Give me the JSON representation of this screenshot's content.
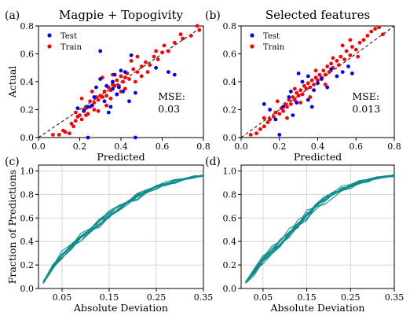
{
  "chart_data": [
    {
      "panel": "(a)",
      "type": "scatter",
      "title": "Magpie + Topogivity",
      "xlabel": "Predicted",
      "ylabel": "Actual",
      "xlim": [
        0,
        0.8
      ],
      "ylim": [
        0,
        0.8
      ],
      "xticks": [
        "0.0",
        "0.2",
        "0.4",
        "0.6",
        "0.8"
      ],
      "yticks": [
        "0.0",
        "0.2",
        "0.4",
        "0.6",
        "0.8"
      ],
      "diagonal": true,
      "legend": "top-left",
      "annotation": [
        "MSE:",
        "0.03"
      ],
      "series": [
        {
          "name": "Test",
          "color": "#0000ff",
          "points": [
            [
              0.22,
              0.19
            ],
            [
              0.24,
              0.22
            ],
            [
              0.26,
              0.23
            ],
            [
              0.28,
              0.36
            ],
            [
              0.3,
              0.42
            ],
            [
              0.32,
              0.26
            ],
            [
              0.34,
              0.18
            ],
            [
              0.35,
              0.22
            ],
            [
              0.36,
              0.4
            ],
            [
              0.37,
              0.45
            ],
            [
              0.38,
              0.31
            ],
            [
              0.4,
              0.48
            ],
            [
              0.41,
              0.33
            ],
            [
              0.44,
              0.26
            ],
            [
              0.45,
              0.59
            ],
            [
              0.47,
              0.32
            ],
            [
              0.57,
              0.5
            ],
            [
              0.63,
              0.47
            ],
            [
              0.66,
              0.45
            ],
            [
              0.3,
              0.62
            ],
            [
              0.47,
              0.0
            ],
            [
              0.24,
              0.0
            ],
            [
              0.19,
              0.21
            ],
            [
              0.36,
              0.35
            ],
            [
              0.42,
              0.47
            ],
            [
              0.27,
              0.29
            ],
            [
              0.33,
              0.37
            ],
            [
              0.39,
              0.36
            ]
          ]
        },
        {
          "name": "Train",
          "color": "#ff0000",
          "points": [
            [
              0.07,
              0.02
            ],
            [
              0.1,
              0.02
            ],
            [
              0.12,
              0.05
            ],
            [
              0.13,
              0.04
            ],
            [
              0.15,
              0.03
            ],
            [
              0.16,
              0.1
            ],
            [
              0.17,
              0.08
            ],
            [
              0.18,
              0.12
            ],
            [
              0.19,
              0.15
            ],
            [
              0.2,
              0.16
            ],
            [
              0.21,
              0.13
            ],
            [
              0.22,
              0.2
            ],
            [
              0.23,
              0.21
            ],
            [
              0.24,
              0.17
            ],
            [
              0.25,
              0.22
            ],
            [
              0.25,
              0.26
            ],
            [
              0.26,
              0.23
            ],
            [
              0.27,
              0.25
            ],
            [
              0.28,
              0.29
            ],
            [
              0.29,
              0.27
            ],
            [
              0.3,
              0.3
            ],
            [
              0.31,
              0.29
            ],
            [
              0.32,
              0.33
            ],
            [
              0.33,
              0.3
            ],
            [
              0.34,
              0.36
            ],
            [
              0.35,
              0.34
            ],
            [
              0.36,
              0.38
            ],
            [
              0.37,
              0.37
            ],
            [
              0.38,
              0.41
            ],
            [
              0.39,
              0.37
            ],
            [
              0.4,
              0.44
            ],
            [
              0.41,
              0.4
            ],
            [
              0.42,
              0.43
            ],
            [
              0.43,
              0.46
            ],
            [
              0.44,
              0.42
            ],
            [
              0.46,
              0.49
            ],
            [
              0.48,
              0.47
            ],
            [
              0.5,
              0.51
            ],
            [
              0.52,
              0.54
            ],
            [
              0.54,
              0.52
            ],
            [
              0.56,
              0.58
            ],
            [
              0.58,
              0.56
            ],
            [
              0.6,
              0.61
            ],
            [
              0.63,
              0.62
            ],
            [
              0.66,
              0.68
            ],
            [
              0.7,
              0.71
            ],
            [
              0.74,
              0.73
            ],
            [
              0.78,
              0.77
            ],
            [
              0.77,
              0.8
            ],
            [
              0.29,
              0.19
            ],
            [
              0.33,
              0.23
            ],
            [
              0.38,
              0.31
            ],
            [
              0.42,
              0.35
            ],
            [
              0.47,
              0.4
            ],
            [
              0.21,
              0.28
            ],
            [
              0.26,
              0.33
            ],
            [
              0.36,
              0.45
            ],
            [
              0.31,
              0.43
            ],
            [
              0.45,
              0.55
            ],
            [
              0.53,
              0.47
            ],
            [
              0.57,
              0.62
            ],
            [
              0.61,
              0.66
            ],
            [
              0.69,
              0.74
            ],
            [
              0.18,
              0.18
            ],
            [
              0.23,
              0.16
            ],
            [
              0.27,
              0.2
            ],
            [
              0.35,
              0.28
            ],
            [
              0.4,
              0.33
            ],
            [
              0.48,
              0.58
            ],
            [
              0.5,
              0.44
            ]
          ]
        }
      ]
    },
    {
      "panel": "(b)",
      "type": "scatter",
      "title": "Selected features",
      "xlabel": "Predicted",
      "ylabel": "",
      "xlim": [
        0,
        0.8
      ],
      "ylim": [
        0,
        0.8
      ],
      "xticks": [
        "0.0",
        "0.2",
        "0.4",
        "0.6",
        "0.8"
      ],
      "yticks": [
        "0.0",
        "0.2",
        "0.4",
        "0.6",
        "0.8"
      ],
      "diagonal": true,
      "legend": "top-left",
      "annotation": [
        "MSE:",
        "0.013"
      ],
      "series": [
        {
          "name": "Test",
          "color": "#0000ff",
          "points": [
            [
              0.12,
              0.24
            ],
            [
              0.15,
              0.2
            ],
            [
              0.18,
              0.13
            ],
            [
              0.2,
              0.02
            ],
            [
              0.22,
              0.22
            ],
            [
              0.25,
              0.29
            ],
            [
              0.27,
              0.16
            ],
            [
              0.29,
              0.25
            ],
            [
              0.3,
              0.46
            ],
            [
              0.32,
              0.4
            ],
            [
              0.35,
              0.27
            ],
            [
              0.37,
              0.22
            ],
            [
              0.38,
              0.34
            ],
            [
              0.4,
              0.39
            ],
            [
              0.42,
              0.42
            ],
            [
              0.45,
              0.36
            ],
            [
              0.47,
              0.49
            ],
            [
              0.5,
              0.44
            ],
            [
              0.53,
              0.47
            ],
            [
              0.56,
              0.51
            ],
            [
              0.58,
              0.46
            ],
            [
              0.35,
              0.44
            ],
            [
              0.26,
              0.33
            ]
          ]
        },
        {
          "name": "Train",
          "color": "#ff0000",
          "points": [
            [
              0.05,
              0.02
            ],
            [
              0.08,
              0.03
            ],
            [
              0.1,
              0.06
            ],
            [
              0.12,
              0.08
            ],
            [
              0.14,
              0.11
            ],
            [
              0.15,
              0.13
            ],
            [
              0.17,
              0.15
            ],
            [
              0.18,
              0.18
            ],
            [
              0.2,
              0.17
            ],
            [
              0.21,
              0.21
            ],
            [
              0.22,
              0.19
            ],
            [
              0.23,
              0.24
            ],
            [
              0.24,
              0.22
            ],
            [
              0.25,
              0.27
            ],
            [
              0.26,
              0.24
            ],
            [
              0.27,
              0.29
            ],
            [
              0.28,
              0.27
            ],
            [
              0.29,
              0.32
            ],
            [
              0.3,
              0.3
            ],
            [
              0.31,
              0.34
            ],
            [
              0.32,
              0.31
            ],
            [
              0.33,
              0.37
            ],
            [
              0.34,
              0.35
            ],
            [
              0.35,
              0.39
            ],
            [
              0.36,
              0.36
            ],
            [
              0.37,
              0.41
            ],
            [
              0.38,
              0.38
            ],
            [
              0.39,
              0.43
            ],
            [
              0.4,
              0.41
            ],
            [
              0.41,
              0.45
            ],
            [
              0.42,
              0.43
            ],
            [
              0.43,
              0.48
            ],
            [
              0.44,
              0.45
            ],
            [
              0.45,
              0.51
            ],
            [
              0.46,
              0.47
            ],
            [
              0.47,
              0.53
            ],
            [
              0.48,
              0.5
            ],
            [
              0.5,
              0.55
            ],
            [
              0.51,
              0.52
            ],
            [
              0.52,
              0.58
            ],
            [
              0.54,
              0.56
            ],
            [
              0.55,
              0.62
            ],
            [
              0.57,
              0.59
            ],
            [
              0.58,
              0.65
            ],
            [
              0.6,
              0.63
            ],
            [
              0.62,
              0.68
            ],
            [
              0.64,
              0.7
            ],
            [
              0.66,
              0.73
            ],
            [
              0.68,
              0.76
            ],
            [
              0.7,
              0.78
            ],
            [
              0.72,
              0.79
            ],
            [
              0.74,
              0.74
            ],
            [
              0.12,
              0.14
            ],
            [
              0.19,
              0.26
            ],
            [
              0.24,
              0.14
            ],
            [
              0.28,
              0.35
            ],
            [
              0.31,
              0.25
            ],
            [
              0.36,
              0.29
            ],
            [
              0.39,
              0.48
            ],
            [
              0.44,
              0.38
            ],
            [
              0.48,
              0.57
            ],
            [
              0.53,
              0.66
            ],
            [
              0.57,
              0.7
            ],
            [
              0.61,
              0.58
            ]
          ]
        }
      ]
    },
    {
      "panel": "(c)",
      "type": "line",
      "title": "",
      "xlabel": "Absolute Deviation",
      "ylabel": "Fraction of Predictions",
      "xlim": [
        0.0,
        0.35
      ],
      "ylim": [
        0.0,
        1.05
      ],
      "xticks": [
        "0.05",
        "0.15",
        "0.25",
        "0.35"
      ],
      "yticks": [
        "0.0",
        "0.2",
        "0.4",
        "0.6",
        "0.8",
        "1.0"
      ],
      "grid": true,
      "line_color": "#108c8c",
      "curve_count": 10,
      "x": [
        0.01,
        0.03,
        0.05,
        0.07,
        0.09,
        0.11,
        0.13,
        0.15,
        0.17,
        0.19,
        0.21,
        0.23,
        0.25,
        0.27,
        0.29,
        0.31,
        0.33,
        0.35
      ],
      "mean_curve": [
        0.05,
        0.18,
        0.29,
        0.36,
        0.43,
        0.5,
        0.56,
        0.62,
        0.68,
        0.73,
        0.78,
        0.82,
        0.86,
        0.89,
        0.91,
        0.93,
        0.95,
        0.96
      ],
      "spread": [
        0.01,
        0.03,
        0.04,
        0.04,
        0.04,
        0.04,
        0.04,
        0.04,
        0.03,
        0.03,
        0.03,
        0.03,
        0.02,
        0.02,
        0.02,
        0.01,
        0.01,
        0.01
      ]
    },
    {
      "panel": "(d)",
      "type": "line",
      "title": "",
      "xlabel": "Absolute Deviation",
      "ylabel": "",
      "xlim": [
        0.0,
        0.35
      ],
      "ylim": [
        0.0,
        1.05
      ],
      "xticks": [
        "0.05",
        "0.15",
        "0.25",
        "0.35"
      ],
      "yticks": [
        "0.0",
        "0.2",
        "0.4",
        "0.6",
        "0.8",
        "1.0"
      ],
      "grid": true,
      "line_color": "#108c8c",
      "curve_count": 10,
      "x": [
        0.01,
        0.03,
        0.05,
        0.07,
        0.09,
        0.11,
        0.13,
        0.15,
        0.17,
        0.19,
        0.21,
        0.23,
        0.25,
        0.27,
        0.29,
        0.31,
        0.33,
        0.35
      ],
      "mean_curve": [
        0.05,
        0.14,
        0.24,
        0.31,
        0.39,
        0.46,
        0.54,
        0.62,
        0.69,
        0.75,
        0.8,
        0.84,
        0.87,
        0.9,
        0.92,
        0.94,
        0.95,
        0.96
      ],
      "spread": [
        0.01,
        0.03,
        0.04,
        0.05,
        0.05,
        0.05,
        0.05,
        0.05,
        0.04,
        0.04,
        0.03,
        0.03,
        0.02,
        0.02,
        0.02,
        0.01,
        0.01,
        0.01
      ]
    }
  ]
}
